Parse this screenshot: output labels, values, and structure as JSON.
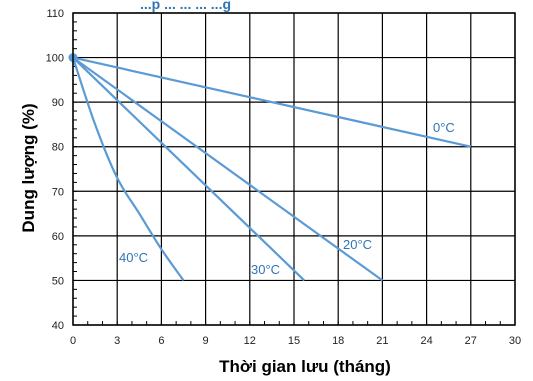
{
  "chart_data": {
    "type": "line",
    "title_fragment": "...p ... ... ... ...g",
    "xlabel": "Thời gian lưu (tháng)",
    "ylabel": "Dung lượng (%)",
    "xlim": [
      0,
      30
    ],
    "ylim": [
      40,
      110
    ],
    "xticks": [
      0,
      3,
      6,
      9,
      12,
      15,
      18,
      21,
      24,
      27,
      30
    ],
    "yticks": [
      40,
      50,
      60,
      70,
      80,
      90,
      100,
      110
    ],
    "grid": true,
    "series": [
      {
        "name": "0°C",
        "x": [
          0,
          27
        ],
        "y": [
          100,
          80
        ]
      },
      {
        "name": "20°C",
        "x": [
          0,
          21
        ],
        "y": [
          100,
          50
        ]
      },
      {
        "name": "30°C",
        "x": [
          0,
          15.7
        ],
        "y": [
          100,
          50
        ]
      },
      {
        "name": "40°C",
        "x": [
          0,
          1.5,
          3,
          4.5,
          6,
          7.5
        ],
        "y": [
          100,
          85,
          73,
          65,
          57,
          50
        ]
      }
    ],
    "series_color": "#5b9bd5",
    "label_color": "#2e75b6"
  }
}
